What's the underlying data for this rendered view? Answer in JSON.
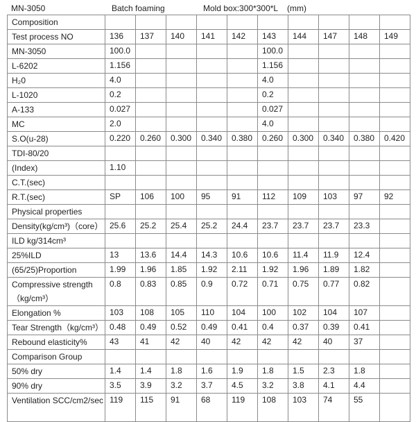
{
  "header": {
    "product": "MN-3050",
    "method": "Batch foaming",
    "mold": "Mold box:300*300*L    (mm)"
  },
  "table": {
    "rows": [
      {
        "label": "Composition",
        "values": [
          "",
          "",
          "",
          "",
          "",
          "",
          "",
          "",
          "",
          ""
        ]
      },
      {
        "label": "Test process NO",
        "values": [
          "136",
          "137",
          "140",
          "141",
          "142",
          "143",
          "144",
          "147",
          "148",
          "149"
        ]
      },
      {
        "label": "MN-3050",
        "values": [
          "100.0",
          "",
          "",
          "",
          "",
          "100.0",
          "",
          "",
          "",
          ""
        ]
      },
      {
        "label": "L-6202",
        "values": [
          "1.156",
          "",
          "",
          "",
          "",
          "1.156",
          "",
          "",
          "",
          ""
        ]
      },
      {
        "label": "H₂0",
        "values": [
          "4.0",
          "",
          "",
          "",
          "",
          "4.0",
          "",
          "",
          "",
          ""
        ]
      },
      {
        "label": "L-1020",
        "values": [
          "0.2",
          "",
          "",
          "",
          "",
          "0.2",
          "",
          "",
          "",
          ""
        ]
      },
      {
        "label": "A-133",
        "values": [
          "0.027",
          "",
          "",
          "",
          "",
          "0.027",
          "",
          "",
          "",
          ""
        ]
      },
      {
        "label": "MC",
        "values": [
          "2.0",
          "",
          "",
          "",
          "",
          "4.0",
          "",
          "",
          "",
          ""
        ]
      },
      {
        "label": "S.O(u-28)",
        "values": [
          "0.220",
          "0.260",
          "0.300",
          "0.340",
          "0.380",
          "0.260",
          "0.300",
          "0.340",
          "0.380",
          "0.420"
        ]
      },
      {
        "label": "TDI-80/20",
        "values": [
          "",
          "",
          "",
          "",
          "",
          "",
          "",
          "",
          "",
          ""
        ]
      },
      {
        "label": "(Index)",
        "values": [
          "1.10",
          "",
          "",
          "",
          "",
          "",
          "",
          "",
          "",
          ""
        ]
      },
      {
        "label": "C.T.(sec)",
        "values": [
          "",
          "",
          "",
          "",
          "",
          "",
          "",
          "",
          "",
          ""
        ]
      },
      {
        "label": "R.T.(sec)",
        "values": [
          "SP",
          "106",
          "100",
          "95",
          "91",
          "112",
          "109",
          "103",
          "97",
          "92"
        ]
      },
      {
        "label": "Physical properties",
        "values": [
          "",
          "",
          "",
          "",
          "",
          "",
          "",
          "",
          "",
          ""
        ]
      },
      {
        "label": "Density(kg/cm³)（core）",
        "values": [
          "25.6",
          "25.2",
          "25.4",
          "25.2",
          "24.4",
          "23.7",
          "23.7",
          "23.7",
          "23.3",
          ""
        ]
      },
      {
        "label": "ILD kg/314cm³",
        "values": [
          "",
          "",
          "",
          "",
          "",
          "",
          "",
          "",
          "",
          ""
        ]
      },
      {
        "label": "25%ILD",
        "values": [
          "13",
          "13.6",
          "14.4",
          "14.3",
          "10.6",
          "10.6",
          "11.4",
          "11.9",
          "12.4",
          ""
        ]
      },
      {
        "label": "(65/25)Proportion",
        "values": [
          "1.99",
          "1.96",
          "1.85",
          "1.92",
          "2.11",
          "1.92",
          "1.96",
          "1.89",
          "1.82",
          ""
        ]
      },
      {
        "label": "Compressive strength （kg/cm³）",
        "tall": true,
        "values": [
          "0.8",
          "0.83",
          "0.85",
          "0.9",
          "0.72",
          "0.71",
          "0.75",
          "0.77",
          "0.82",
          ""
        ]
      },
      {
        "label": "Elongation %",
        "values": [
          "103",
          "108",
          "105",
          "110",
          "104",
          "100",
          "102",
          "104",
          "107",
          ""
        ]
      },
      {
        "label": "Tear Strength（kg/cm³）",
        "values": [
          "0.48",
          "0.49",
          "0.52",
          "0.49",
          "0.41",
          "0.4",
          "0.37",
          "0.39",
          "0.41",
          ""
        ]
      },
      {
        "label": "Rebound elasticity%",
        "values": [
          "43",
          "41",
          "42",
          "40",
          "42",
          "42",
          "42",
          "40",
          "37",
          ""
        ]
      },
      {
        "label": "Comparison Group",
        "values": [
          "",
          "",
          "",
          "",
          "",
          "",
          "",
          "",
          "",
          ""
        ]
      },
      {
        "label": "50% dry",
        "values": [
          "1.4",
          "1.4",
          "1.8",
          "1.6",
          "1.9",
          "1.8",
          "1.5",
          "2.3",
          "1.8",
          ""
        ]
      },
      {
        "label": "90% dry",
        "values": [
          "3.5",
          "3.9",
          "3.2",
          "3.7",
          "4.5",
          "3.2",
          "3.8",
          "4.1",
          "4.4",
          ""
        ]
      },
      {
        "label": "Ventilation SCC/cm2/sec",
        "tall": true,
        "values": [
          "119",
          "115",
          "91",
          "68",
          "119",
          "108",
          "103",
          "74",
          "55",
          ""
        ]
      }
    ]
  }
}
